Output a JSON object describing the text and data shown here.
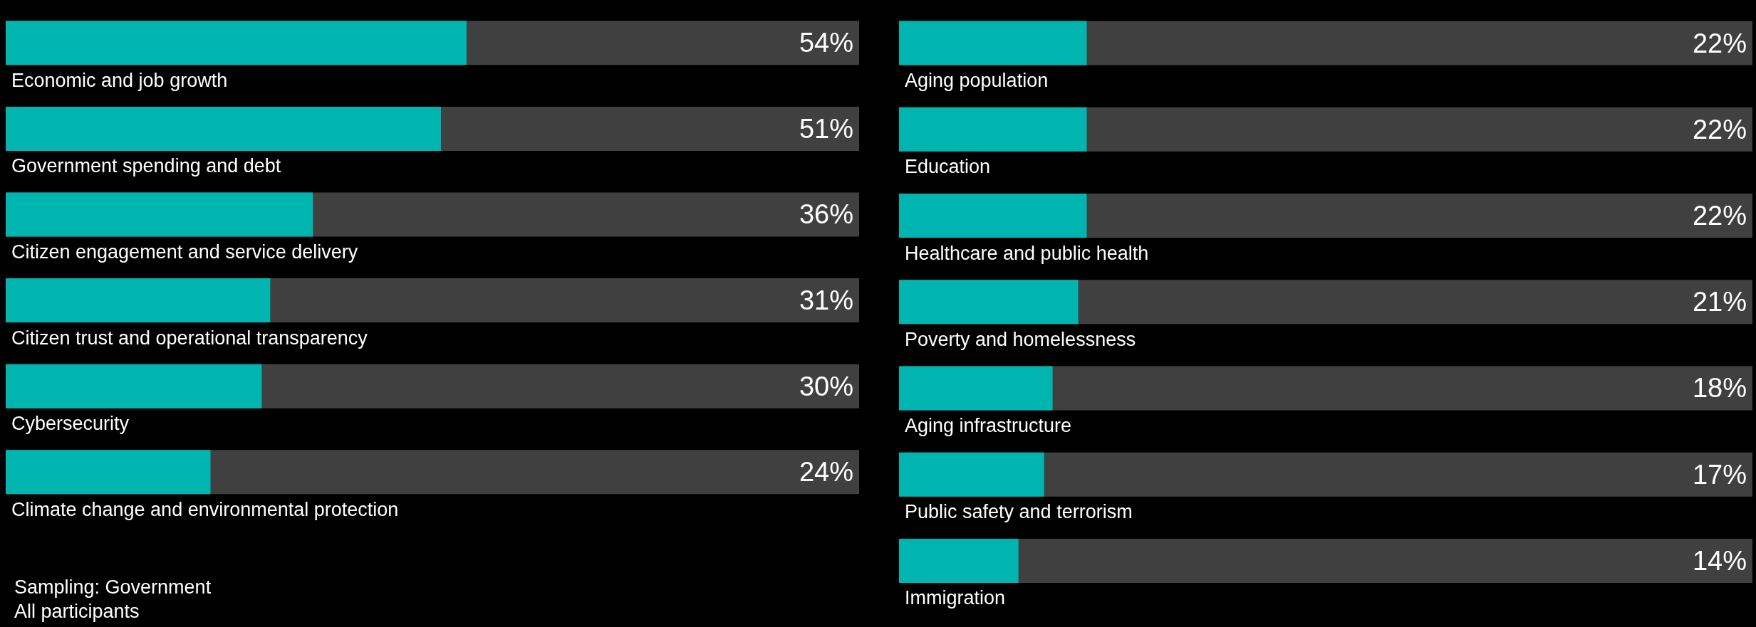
{
  "chart_data": [
    {
      "type": "bar",
      "orientation": "horizontal",
      "categories": [
        "Economic and job growth",
        "Government spending and debt",
        "Citizen engagement and service delivery",
        "Citizen trust and operational transparency",
        "Cybersecurity",
        "Climate change and environmental protection"
      ],
      "values": [
        54,
        51,
        36,
        31,
        30,
        24
      ],
      "value_labels": [
        "54%",
        "51%",
        "36%",
        "31%",
        "30%",
        "24%"
      ],
      "color": "#00b5b0",
      "xlim": [
        0,
        100
      ],
      "tick_labels": "y",
      "annotations": [
        "Sampling: Government",
        "All participants"
      ]
    },
    {
      "type": "bar",
      "orientation": "horizontal",
      "categories": [
        "Aging population",
        "Education",
        "Healthcare and public health",
        "Poverty and homelessness",
        "Aging infrastructure",
        "Public safety and terrorism",
        "Immigration"
      ],
      "values": [
        22,
        22,
        22,
        21,
        18,
        17,
        14
      ],
      "value_labels": [
        "22%",
        "22%",
        "22%",
        "21%",
        "18%",
        "17%",
        "14%"
      ],
      "color": "#00b5b0",
      "xlim": [
        0,
        100
      ],
      "tick_labels": "y"
    }
  ]
}
